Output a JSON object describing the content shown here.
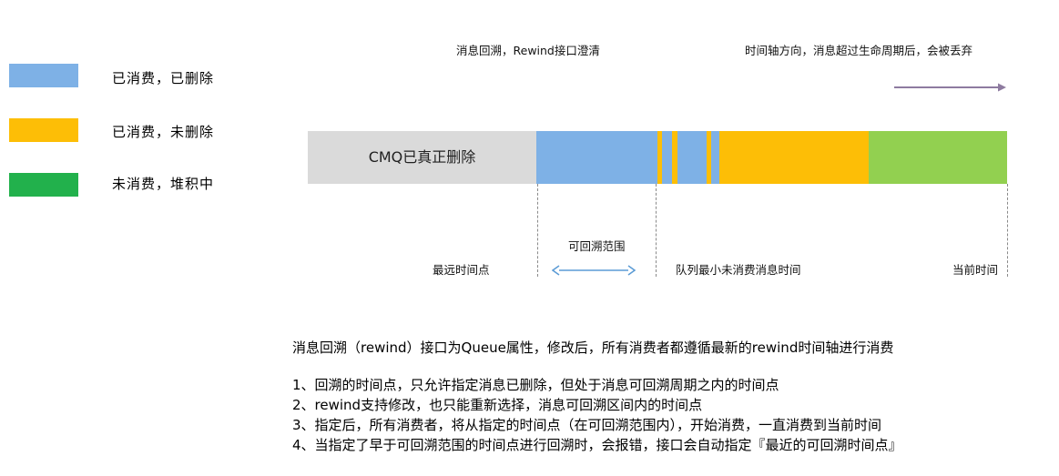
{
  "legend": [
    {
      "label": "已消费，已删除",
      "color": "#7EB1E6"
    },
    {
      "label": "已消费，未删除",
      "color": "#FDBE06"
    },
    {
      "label": "未消费，堆积中",
      "color": "#22B14C"
    }
  ],
  "top_notes": {
    "rewind_note": "消息回溯，Rewind接口澄清",
    "direction_note": "时间轴方向，消息超过生命周期后，会被丢弃"
  },
  "bar": {
    "deleted_text": "CMQ已真正删除",
    "colors": {
      "deleted": "#DADADA",
      "consumed_deleted": "#7EB1E6",
      "consumed_not_deleted": "#FDBE06",
      "unconsumed": "#92D050"
    }
  },
  "timeline": {
    "rewindable_range": "可回溯范围",
    "earliest_point": "最远时间点",
    "min_unconsumed_time": "队列最小未消费消息时间",
    "current_time": "当前时间"
  },
  "notes": [
    "消息回溯（rewind）接口为Queue属性，修改后，所有消费者都遵循最新的rewind时间轴进行消费",
    "1、回溯的时间点，只允许指定消息已删除，但处于消息可回溯周期之内的时间点",
    "2、rewind支持修改，也只能重新选择，消息可回溯区间内的时间点",
    "3、指定后，所有消费者，将从指定的时间点（在可回溯范围内），开始消费，一直消费到当前时间",
    "4、当指定了早于可回溯范围的时间点进行回溯时，会报错，接口会自动指定『最近的可回溯时间点』"
  ],
  "arrow_colors": {
    "timeline": "#8E7BA0",
    "range": "#5B9BD5"
  }
}
